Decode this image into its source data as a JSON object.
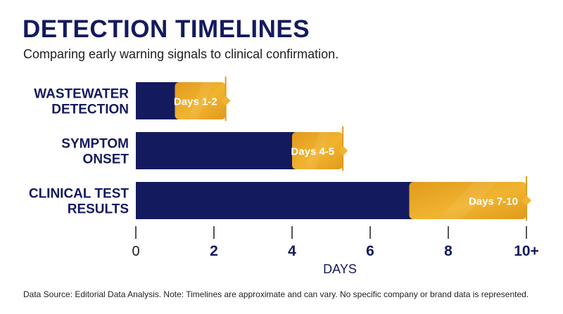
{
  "title": "DETECTION TIMELINES",
  "subtitle": "Comparing early warning signals to clinical confirmation.",
  "source": "Data Source: Editorial Data Analysis. Note: Timelines are approximate and can vary. No specific company or brand data is represented.",
  "colors": {
    "navy": "#141a5e",
    "gold": "#f0b430",
    "gold_dark": "#e29a1c",
    "text": "#1e1e1e"
  },
  "chart_data": {
    "type": "bar",
    "orientation": "horizontal",
    "stacked": true,
    "categories": [
      [
        "WASTEWATER",
        "DETECTION"
      ],
      [
        "SYMPTOM",
        "ONSET"
      ],
      [
        "CLINICAL TEST",
        "RESULTS"
      ]
    ],
    "series": [
      {
        "segment": "navy",
        "values": [
          [
            0,
            1
          ],
          [
            0,
            4
          ],
          [
            0,
            7
          ]
        ]
      },
      {
        "segment": "gold",
        "values": [
          [
            1,
            2.3
          ],
          [
            4,
            5.3
          ],
          [
            7,
            10
          ]
        ]
      }
    ],
    "range_labels": [
      "Days 1-2",
      "Days 4-5",
      "Days 7-10"
    ],
    "xlabel": "DAYS",
    "xlim": [
      0,
      10
    ],
    "xticks": [
      0,
      2,
      4,
      6,
      8,
      10
    ],
    "xtick_labels": [
      "0",
      "2",
      "4",
      "6",
      "8",
      "10+"
    ],
    "grid": false,
    "legend": "none"
  }
}
